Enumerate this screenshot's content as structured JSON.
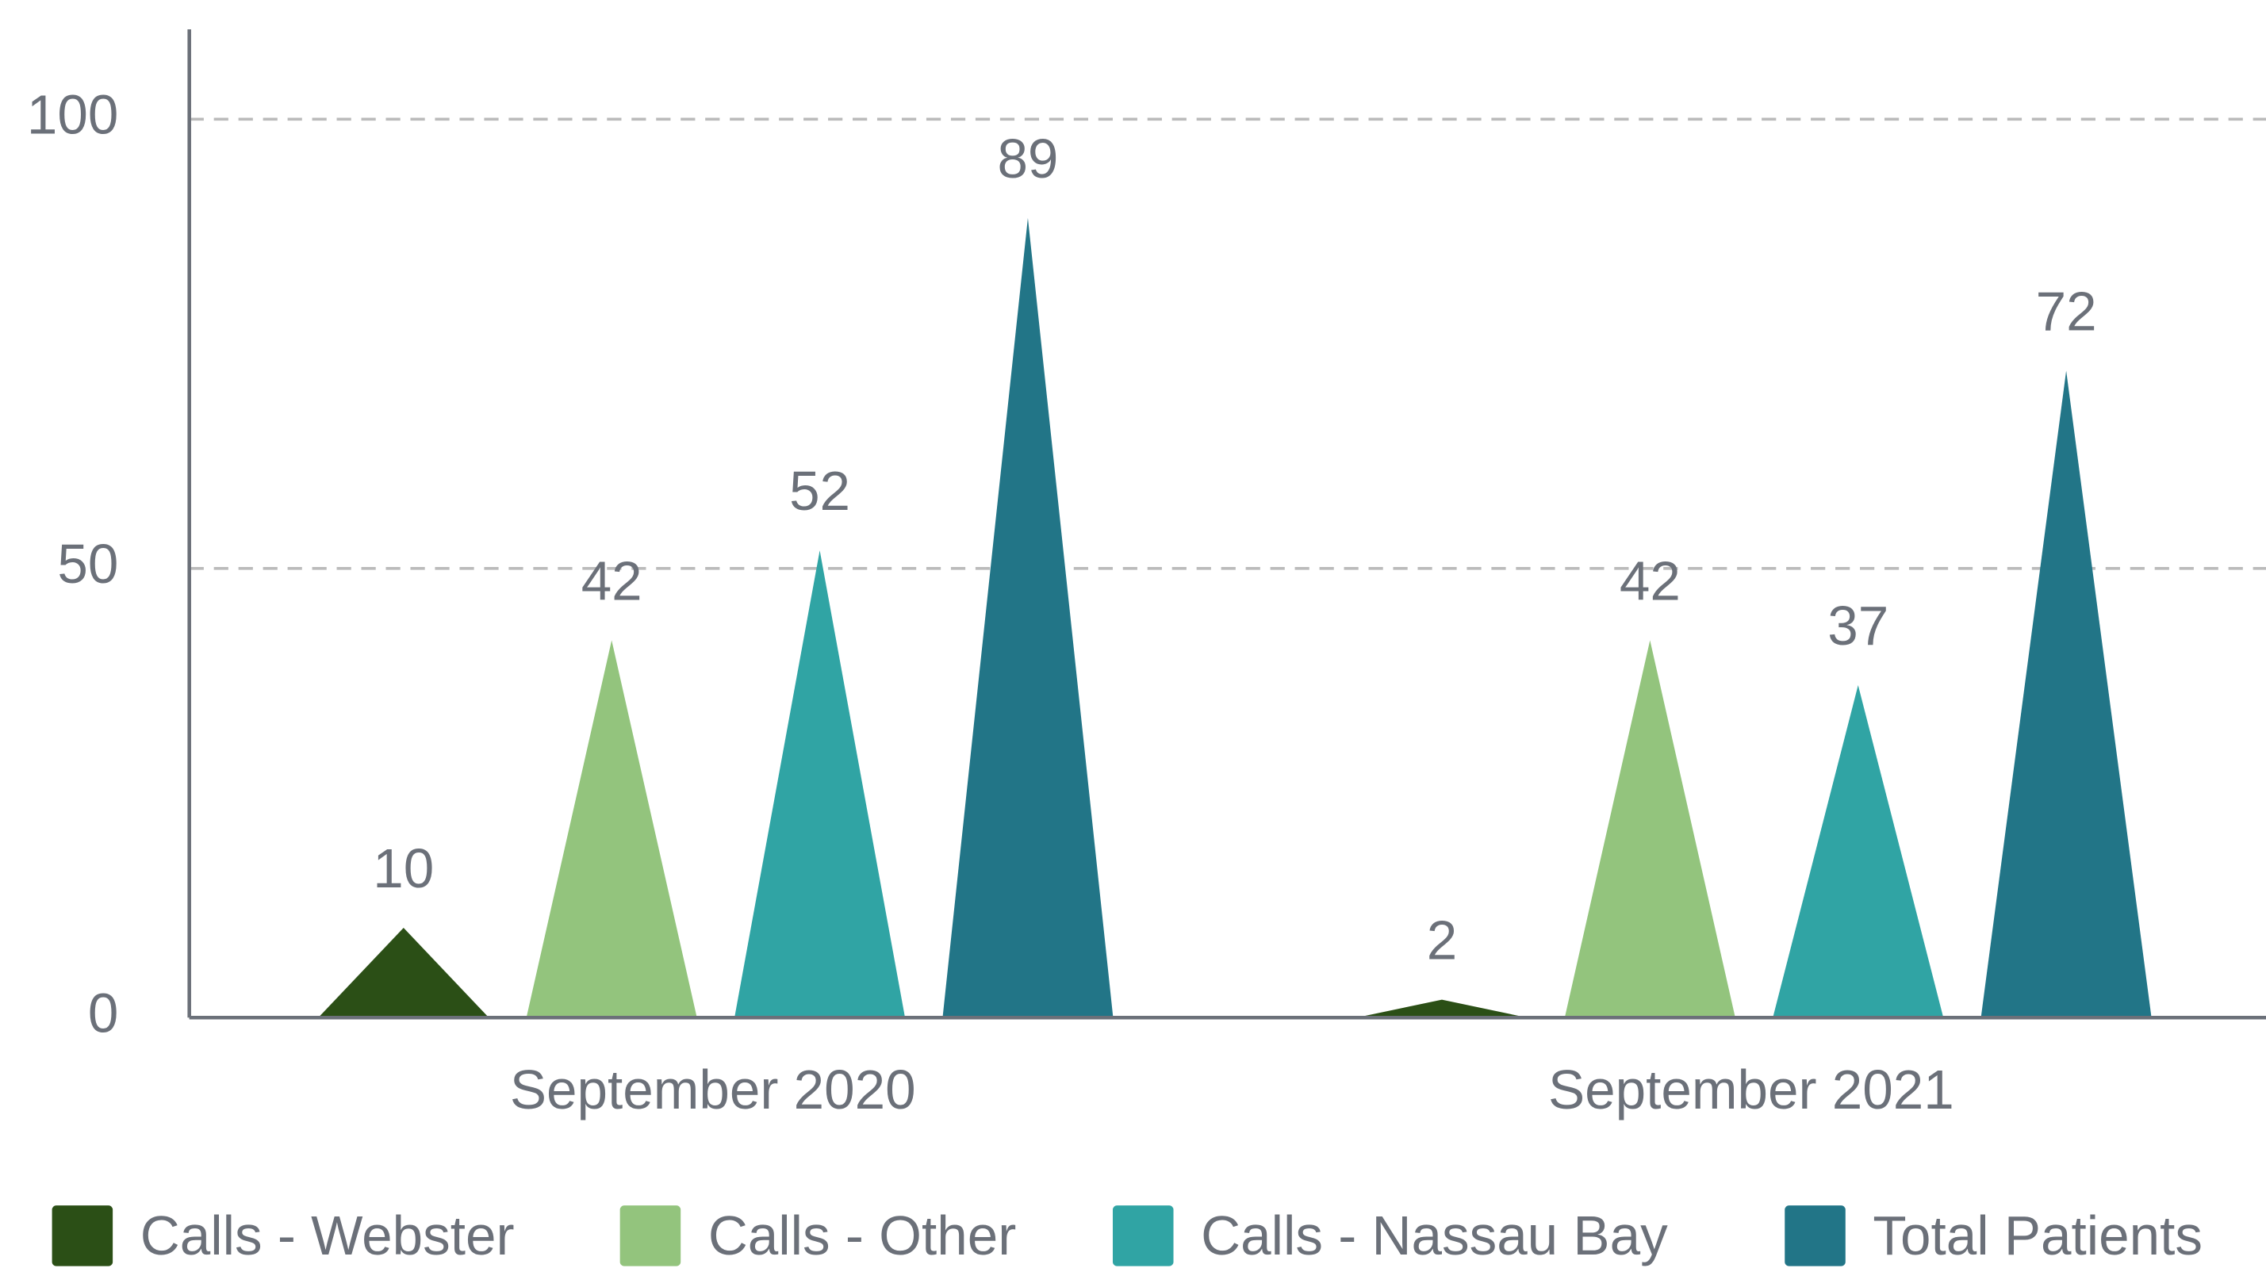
{
  "chart_data": {
    "type": "bar",
    "categories": [
      "September 2020",
      "September 2021"
    ],
    "series": [
      {
        "name": "Calls - Webster",
        "color": "#2b4f16",
        "values": [
          10,
          2
        ]
      },
      {
        "name": "Calls - Other",
        "color": "#93c47d",
        "values": [
          42,
          42
        ]
      },
      {
        "name": "Calls - Nassau Bay",
        "color": "#30a4a4",
        "values": [
          52,
          37
        ]
      },
      {
        "name": "Total Patients",
        "color": "#227587",
        "values": [
          89,
          72
        ]
      }
    ],
    "ylim": [
      0,
      110
    ],
    "yticks": [
      0,
      50,
      100
    ],
    "grid": true,
    "legend": "bottom"
  }
}
